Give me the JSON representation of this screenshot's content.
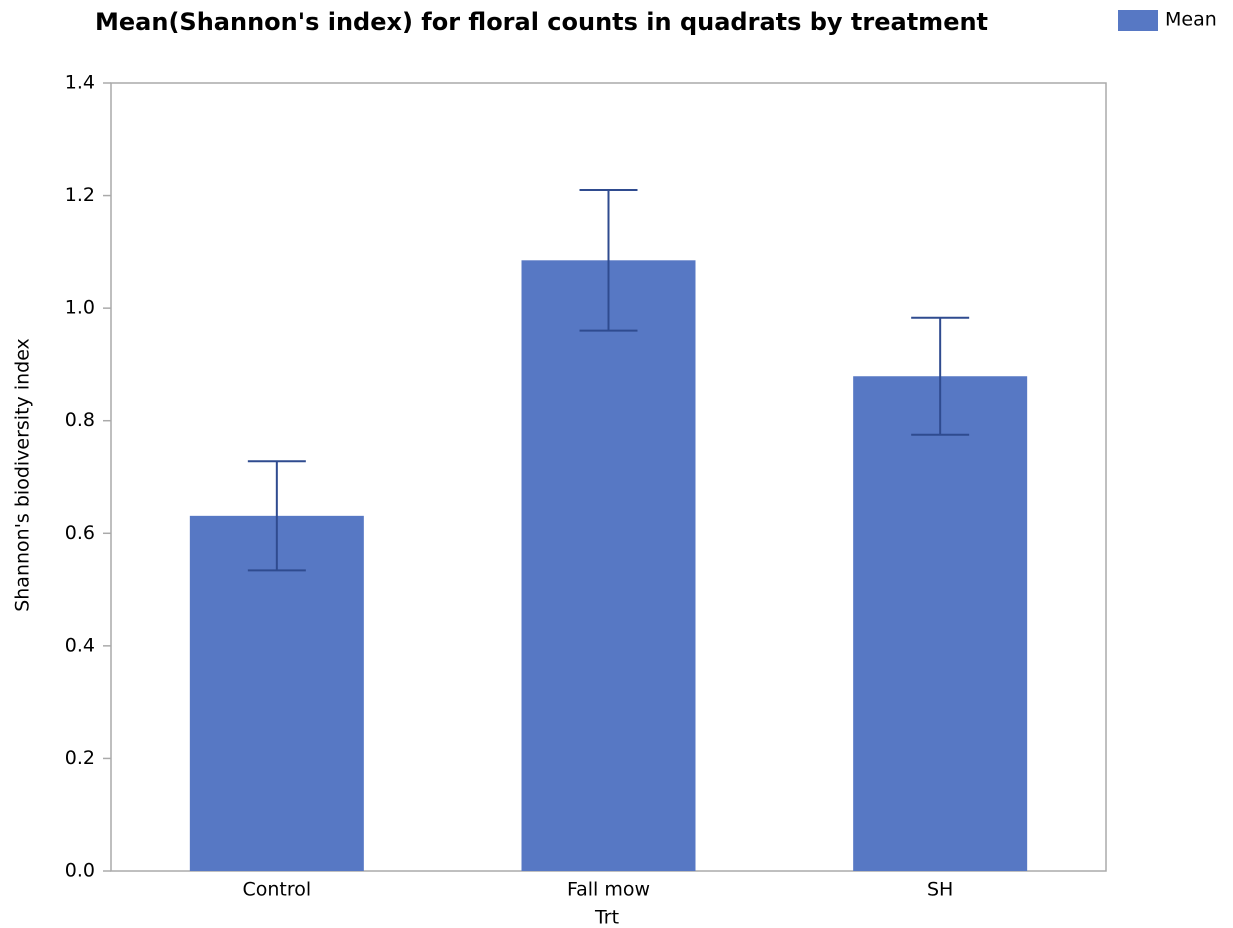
{
  "chart_data": {
    "type": "bar",
    "title": "Mean(Shannon's index) for floral counts in quadrats by treatment",
    "x_label": "Trt",
    "y_label": "Shannon's biodiversity index",
    "categories": [
      "Control",
      "Fall mow",
      "SH"
    ],
    "series": [
      {
        "name": "Mean",
        "color": "#5778c4",
        "error_color": "#2f4b8f",
        "values": [
          0.631,
          1.085,
          0.879
        ],
        "errors": [
          0.097,
          0.125,
          0.104
        ]
      }
    ],
    "ylim": [
      0,
      1.4
    ],
    "yticks": [
      {
        "value": 0,
        "label": "0.0"
      },
      0.2,
      0.4,
      0.6,
      0.8,
      {
        "value": 1,
        "label": "1.0"
      },
      1.2,
      1.4
    ],
    "grid": false,
    "legend": "top-right"
  }
}
